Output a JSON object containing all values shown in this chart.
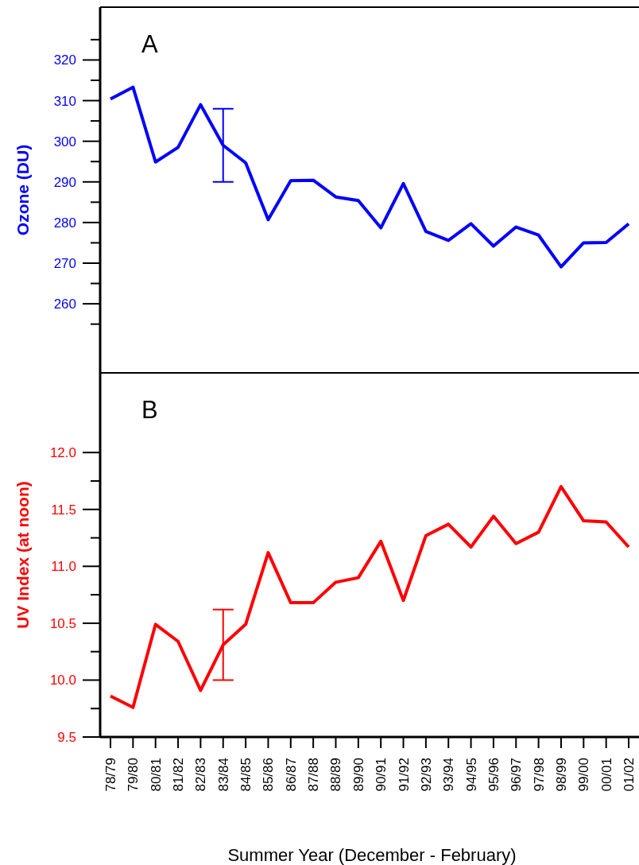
{
  "chart_data": [
    {
      "type": "line",
      "ylabel": "Ozone (DU)",
      "annotations": [
        "A"
      ],
      "categories": [
        null,
        null,
        null,
        null,
        null,
        null,
        null,
        null,
        null,
        null,
        null,
        null,
        null,
        null,
        null,
        null,
        null,
        null,
        null,
        null,
        null,
        null,
        null,
        null
      ],
      "series": [
        {
          "color": "#0000ff",
          "values": [
            310.4,
            313.3,
            294.9,
            298.5,
            309.0,
            299.0,
            294.7,
            280.7,
            290.3,
            290.4,
            286.3,
            285.4,
            278.7,
            289.6,
            277.8,
            275.6,
            279.7,
            274.2,
            278.9,
            276.9,
            269.1,
            275.0,
            275.1,
            279.7
          ],
          "errors": [
            null,
            null,
            null,
            null,
            null,
            [
              290,
              308
            ],
            null,
            null,
            null,
            null,
            null,
            null,
            null,
            null,
            null,
            null,
            null,
            null,
            null,
            null,
            null,
            null,
            null,
            null
          ]
        }
      ],
      "ylim": [
        243,
        333
      ],
      "yticks": [
        {
          "value": 255,
          "label": null
        },
        260,
        {
          "value": 265,
          "label": null
        },
        270,
        {
          "value": 275,
          "label": null
        },
        280,
        {
          "value": 285,
          "label": null
        },
        290,
        {
          "value": 295,
          "label": null
        },
        300,
        {
          "value": 305,
          "label": null
        },
        310,
        {
          "value": 315,
          "label": null
        },
        320,
        {
          "value": 325,
          "label": null
        }
      ],
      "tick_labels": "y",
      "grid": false
    },
    {
      "type": "line",
      "ylabel": "UV Index (at noon)",
      "xlabel": "Summer Year (December - February)",
      "annotations": [
        "B"
      ],
      "categories": [
        "78/79",
        "79/80",
        "80/81",
        "81/82",
        "82/83",
        "83/84",
        "84/85",
        "85/86",
        "86/87",
        "87/88",
        "88/89",
        "89/90",
        "90/91",
        "91/92",
        "92/93",
        "93/94",
        "94/95",
        "95/96",
        "96/97",
        "97/98",
        "98/99",
        "99/00",
        "00/01",
        "01/02"
      ],
      "series": [
        {
          "color": "#ff0000",
          "values": [
            9.86,
            9.76,
            10.49,
            10.34,
            9.91,
            10.31,
            10.49,
            11.12,
            10.68,
            10.68,
            10.86,
            10.9,
            11.22,
            10.7,
            11.27,
            11.37,
            11.17,
            11.44,
            11.2,
            11.3,
            11.7,
            11.4,
            11.39,
            11.17
          ],
          "errors": [
            null,
            null,
            null,
            null,
            null,
            [
              10.0,
              10.62
            ],
            null,
            null,
            null,
            null,
            null,
            null,
            null,
            null,
            null,
            null,
            null,
            null,
            null,
            null,
            null,
            null,
            null,
            null
          ]
        }
      ],
      "ylim": [
        9.5,
        12.7
      ],
      "yticks": [
        {
          "value": 9.5,
          "label": "9.5"
        },
        {
          "value": 9.75,
          "label": null
        },
        {
          "value": 10,
          "label": "10.0"
        },
        {
          "value": 10.25,
          "label": null
        },
        {
          "value": 10.5,
          "label": "10.5"
        },
        {
          "value": 10.75,
          "label": null
        },
        {
          "value": 11,
          "label": "11.0"
        },
        {
          "value": 11.25,
          "label": null
        },
        {
          "value": 11.5,
          "label": "11.5"
        },
        {
          "value": 11.75,
          "label": null
        },
        {
          "value": 12,
          "label": "12.0"
        }
      ],
      "grid": false
    }
  ]
}
